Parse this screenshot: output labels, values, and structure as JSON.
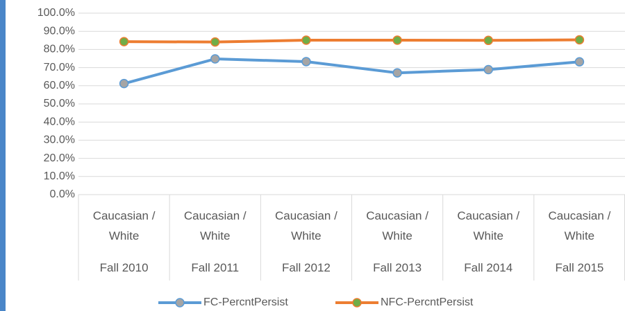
{
  "chart_data": {
    "type": "line",
    "category_groups": [
      "Caucasian / White",
      "Caucasian / White",
      "Caucasian / White",
      "Caucasian / White",
      "Caucasian / White",
      "Caucasian / White"
    ],
    "categories": [
      "Fall 2010",
      "Fall 2011",
      "Fall 2012",
      "Fall 2013",
      "Fall 2014",
      "Fall 2015"
    ],
    "series": [
      {
        "name": "FC-PercntPersist",
        "color": "#5b9bd5",
        "marker_color": "#a5a5a5",
        "values": [
          61.2,
          74.8,
          73.3,
          67.1,
          68.9,
          73.2
        ]
      },
      {
        "name": "NFC-PercntPersist",
        "color": "#ed7d31",
        "marker_color": "#70ad47",
        "values": [
          84.3,
          84.1,
          85.1,
          85.1,
          85.0,
          85.3
        ]
      }
    ],
    "ylim": [
      0,
      100
    ],
    "yticks": [
      {
        "value": 0,
        "label": "0.0%"
      },
      {
        "value": 10,
        "label": "10.0%"
      },
      {
        "value": 20,
        "label": "20.0%"
      },
      {
        "value": 30,
        "label": "30.0%"
      },
      {
        "value": 40,
        "label": "40.0%"
      },
      {
        "value": 50,
        "label": "50.0%"
      },
      {
        "value": 60,
        "label": "60.0%"
      },
      {
        "value": 70,
        "label": "70.0%"
      },
      {
        "value": 80,
        "label": "80.0%"
      },
      {
        "value": 90,
        "label": "90.0%"
      },
      {
        "value": 100,
        "label": "100.0%"
      }
    ],
    "grid": true,
    "legend": "bottom"
  }
}
